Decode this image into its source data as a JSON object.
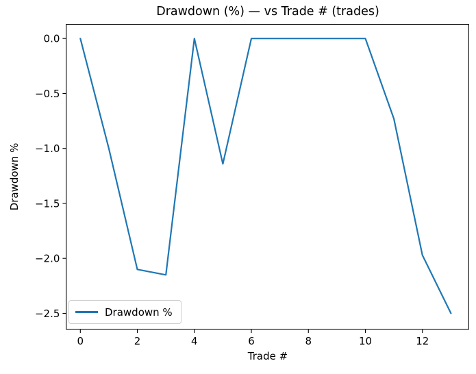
{
  "figure": {
    "title": "Drawdown (%) — vs Trade # (trades)",
    "xlabel": "Trade #",
    "ylabel": "Drawdown %",
    "legend_label": "Drawdown %",
    "line_color": "#1f77b4",
    "axis_color": "#000000",
    "legend_border_color": "#cccccc",
    "background_color": "#ffffff"
  },
  "chart_data": {
    "type": "line",
    "title": "Drawdown (%) — vs Trade # (trades)",
    "xlabel": "Trade #",
    "ylabel": "Drawdown %",
    "x": [
      0,
      1,
      2,
      3,
      4,
      5,
      6,
      7,
      8,
      9,
      10,
      11,
      12,
      13
    ],
    "series": [
      {
        "name": "Drawdown %",
        "color": "#1f77b4",
        "values": [
          0.0,
          -1.0,
          -2.1,
          -2.15,
          0.0,
          -1.14,
          0.0,
          0.0,
          0.0,
          0.0,
          0.0,
          -0.73,
          -1.97,
          -2.5
        ]
      }
    ],
    "x_ticks": [
      0,
      2,
      4,
      6,
      8,
      10,
      12
    ],
    "y_ticks": [
      0.0,
      -0.5,
      -1.0,
      -1.5,
      -2.0,
      -2.5
    ],
    "y_tick_labels": [
      "0.0",
      "−0.5",
      "−1.0",
      "−1.5",
      "−2.0",
      "−2.5"
    ],
    "xlim": [
      -0.65,
      13.65
    ],
    "ylim": [
      -2.65,
      0.13
    ],
    "grid": false,
    "legend_position": "lower left"
  }
}
